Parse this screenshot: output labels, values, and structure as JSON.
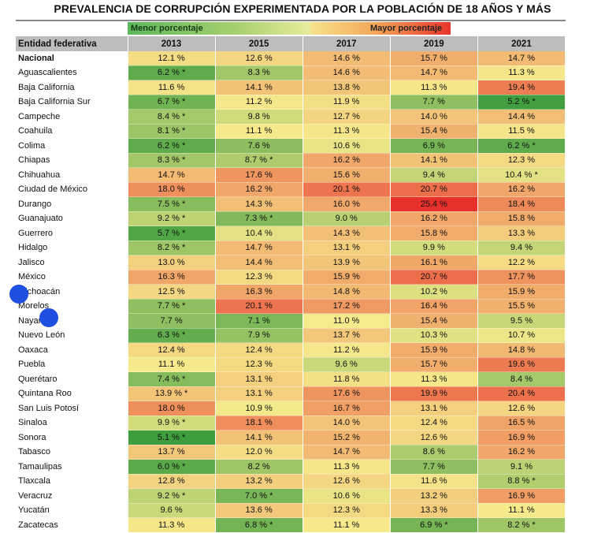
{
  "title": "PREVALENCIA DE CORRUPCIÓN EXPERIMENTADA POR LA POBLACIÓN DE 18 AÑOS Y MÁS",
  "legend": {
    "low": "Menor porcentaje",
    "high": "Mayor porcentaje"
  },
  "chart_data": {
    "type": "heatmap",
    "title": "PREVALENCIA DE CORRUPCIÓN EXPERIMENTADA POR LA POBLACIÓN DE 18 AÑOS Y MÁS",
    "row_header": "Entidad federativa",
    "columns": [
      "2013",
      "2015",
      "2017",
      "2019",
      "2021"
    ],
    "color_scale": {
      "min_color": "#3e9e3e",
      "mid_color": "#f5ea8c",
      "max_color": "#e8302a"
    },
    "rows": [
      {
        "name": "Nacional",
        "values": [
          12.1,
          12.6,
          14.6,
          15.7,
          14.7
        ],
        "labels": [
          "12.1 %",
          "12.6 %",
          "14.6 %",
          "15.7 %",
          "14.7 %"
        ]
      },
      {
        "name": "Aguascalientes",
        "values": [
          6.2,
          8.3,
          14.6,
          14.7,
          11.3
        ],
        "labels": [
          "6.2 % *",
          "8.3 %",
          "14.6 %",
          "14.7 %",
          "11.3 %"
        ]
      },
      {
        "name": "Baja California",
        "values": [
          11.6,
          14.1,
          13.8,
          11.3,
          19.4
        ],
        "labels": [
          "11.6 %",
          "14.1 %",
          "13.8 %",
          "11.3 %",
          "19.4 %"
        ]
      },
      {
        "name": "Baja California Sur",
        "values": [
          6.7,
          11.2,
          11.9,
          7.7,
          5.2
        ],
        "labels": [
          "6.7 % *",
          "11.2 %",
          "11.9 %",
          "7.7 %",
          "5.2 % *"
        ]
      },
      {
        "name": "Campeche",
        "values": [
          8.4,
          9.8,
          12.7,
          14.0,
          14.4
        ],
        "labels": [
          "8.4 % *",
          "9.8 %",
          "12.7 %",
          "14.0 %",
          "14.4 %"
        ]
      },
      {
        "name": "Coahuila",
        "values": [
          8.1,
          11.1,
          11.3,
          15.4,
          11.5
        ],
        "labels": [
          "8.1 % *",
          "11.1 %",
          "11.3 %",
          "15.4 %",
          "11.5 %"
        ]
      },
      {
        "name": "Colima",
        "values": [
          6.2,
          7.6,
          10.6,
          6.9,
          6.2
        ],
        "labels": [
          "6.2 % *",
          "7.6 %",
          "10.6 %",
          "6.9 %",
          "6.2 % *"
        ]
      },
      {
        "name": "Chiapas",
        "values": [
          8.3,
          8.7,
          16.2,
          14.1,
          12.3
        ],
        "labels": [
          "8.3 % *",
          "8.7 % *",
          "16.2 %",
          "14.1 %",
          "12.3 %"
        ]
      },
      {
        "name": "Chihuahua",
        "values": [
          14.7,
          17.6,
          15.6,
          9.4,
          10.4
        ],
        "labels": [
          "14.7 %",
          "17.6 %",
          "15.6 %",
          "9.4 %",
          "10.4 % *"
        ]
      },
      {
        "name": "Ciudad de México",
        "values": [
          18.0,
          16.2,
          20.1,
          20.7,
          16.2
        ],
        "labels": [
          "18.0 %",
          "16.2 %",
          "20.1 %",
          "20.7 %",
          "16.2 %"
        ]
      },
      {
        "name": "Durango",
        "values": [
          7.5,
          14.3,
          16.0,
          25.4,
          18.4
        ],
        "labels": [
          "7.5 % *",
          "14.3 %",
          "16.0 %",
          "25.4 %",
          "18.4 %"
        ]
      },
      {
        "name": "Guanajuato",
        "values": [
          9.2,
          7.3,
          9.0,
          16.2,
          15.8
        ],
        "labels": [
          "9.2 % *",
          "7.3 % *",
          "9.0 %",
          "16.2 %",
          "15.8 %"
        ]
      },
      {
        "name": "Guerrero",
        "values": [
          5.7,
          10.4,
          14.3,
          15.8,
          13.3
        ],
        "labels": [
          "5.7 % *",
          "10.4 %",
          "14.3 %",
          "15.8 %",
          "13.3 %"
        ]
      },
      {
        "name": "Hidalgo",
        "values": [
          8.2,
          14.7,
          13.1,
          9.9,
          9.4
        ],
        "labels": [
          "8.2 % *",
          "14.7 %",
          "13.1 %",
          "9.9 %",
          "9.4 %"
        ]
      },
      {
        "name": "Jalisco",
        "values": [
          13.0,
          14.4,
          13.9,
          16.1,
          12.2
        ],
        "labels": [
          "13.0 %",
          "14.4 %",
          "13.9 %",
          "16.1 %",
          "12.2 %"
        ]
      },
      {
        "name": "México",
        "values": [
          16.3,
          12.3,
          15.9,
          20.7,
          17.7
        ],
        "labels": [
          "16.3 %",
          "12.3 %",
          "15.9 %",
          "20.7 %",
          "17.7 %"
        ]
      },
      {
        "name": "Michoacán",
        "values": [
          12.5,
          16.3,
          14.8,
          10.2,
          15.9
        ],
        "labels": [
          "12.5 %",
          "16.3 %",
          "14.8 %",
          "10.2 %",
          "15.9 %"
        ]
      },
      {
        "name": "Morelos",
        "values": [
          7.7,
          20.1,
          17.2,
          16.4,
          15.5
        ],
        "labels": [
          "7.7 % *",
          "20.1 %",
          "17.2 %",
          "16.4 %",
          "15.5 %"
        ]
      },
      {
        "name": "Nayarit",
        "values": [
          7.7,
          7.1,
          11.0,
          15.4,
          9.5
        ],
        "labels": [
          "7.7 %",
          "7.1 %",
          "11.0 %",
          "15.4 %",
          "9.5 %"
        ]
      },
      {
        "name": "Nuevo León",
        "values": [
          6.3,
          7.9,
          13.7,
          10.3,
          10.7
        ],
        "labels": [
          "6.3 % *",
          "7.9 %",
          "13.7 %",
          "10.3 %",
          "10.7 %"
        ]
      },
      {
        "name": "Oaxaca",
        "values": [
          12.4,
          12.4,
          11.2,
          15.9,
          14.8
        ],
        "labels": [
          "12.4 %",
          "12.4 %",
          "11.2 %",
          "15.9 %",
          "14.8 %"
        ]
      },
      {
        "name": "Puebla",
        "values": [
          11.1,
          12.3,
          9.6,
          15.7,
          19.6
        ],
        "labels": [
          "11.1 %",
          "12.3 %",
          "9.6 %",
          "15.7 %",
          "19.6 %"
        ]
      },
      {
        "name": "Querétaro",
        "values": [
          7.4,
          13.1,
          11.8,
          11.3,
          8.4
        ],
        "labels": [
          "7.4 % *",
          "13.1 %",
          "11.8 %",
          "11.3 %",
          "8.4 %"
        ]
      },
      {
        "name": "Quintana Roo",
        "values": [
          13.9,
          13.1,
          17.6,
          19.9,
          20.4
        ],
        "labels": [
          "13.9 % *",
          "13.1 %",
          "17.6 %",
          "19.9 %",
          "20.4 %"
        ]
      },
      {
        "name": "San Luis Potosí",
        "values": [
          18.0,
          10.9,
          16.7,
          13.1,
          12.6
        ],
        "labels": [
          "18.0 %",
          "10.9 %",
          "16.7 %",
          "13.1 %",
          "12.6 %"
        ]
      },
      {
        "name": "Sinaloa",
        "values": [
          9.9,
          18.1,
          14.0,
          12.4,
          16.5
        ],
        "labels": [
          "9.9 % *",
          "18.1 %",
          "14.0 %",
          "12.4 %",
          "16.5 %"
        ]
      },
      {
        "name": "Sonora",
        "values": [
          5.1,
          14.1,
          15.2,
          12.6,
          16.9
        ],
        "labels": [
          "5.1 % *",
          "14.1 %",
          "15.2 %",
          "12.6 %",
          "16.9 %"
        ]
      },
      {
        "name": "Tabasco",
        "values": [
          13.7,
          12.0,
          14.7,
          8.6,
          16.2
        ],
        "labels": [
          "13.7 %",
          "12.0 %",
          "14.7 %",
          "8.6 %",
          "16.2 %"
        ]
      },
      {
        "name": "Tamaulipas",
        "values": [
          6.0,
          8.2,
          11.3,
          7.7,
          9.1
        ],
        "labels": [
          "6.0 % *",
          "8.2 %",
          "11.3 %",
          "7.7 %",
          "9.1 %"
        ]
      },
      {
        "name": "Tlaxcala",
        "values": [
          12.8,
          13.2,
          12.6,
          11.6,
          8.8
        ],
        "labels": [
          "12.8 %",
          "13.2 %",
          "12.6 %",
          "11.6 %",
          "8.8 % *"
        ]
      },
      {
        "name": "Veracruz",
        "values": [
          9.2,
          7.0,
          10.6,
          13.2,
          16.9
        ],
        "labels": [
          "9.2 % *",
          "7.0 % *",
          "10.6 %",
          "13.2 %",
          "16.9 %"
        ]
      },
      {
        "name": "Yucatán",
        "values": [
          9.6,
          13.6,
          12.3,
          13.3,
          11.1
        ],
        "labels": [
          "9.6 %",
          "13.6 %",
          "12.3 %",
          "13.3 %",
          "11.1 %"
        ]
      },
      {
        "name": "Zacatecas",
        "values": [
          11.3,
          6.8,
          11.1,
          6.9,
          8.2
        ],
        "labels": [
          "11.3 %",
          "6.8 % *",
          "11.1 %",
          "6.9 % *",
          "8.2 % *"
        ]
      }
    ]
  }
}
